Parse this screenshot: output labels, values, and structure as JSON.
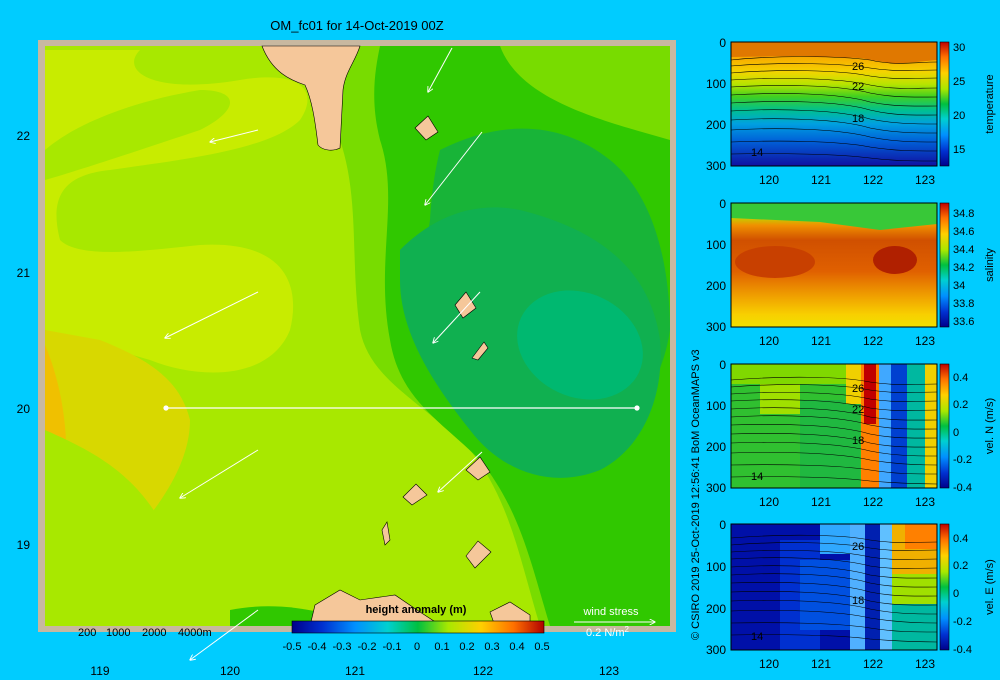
{
  "colors": {
    "background": "#00ccff",
    "land": "#f5c79a",
    "map_frame": "#c8b8a0",
    "arrow": "#ffffff",
    "section_line": "#ffffff"
  },
  "map": {
    "title": "OM_fc01 for 14-Oct-2019 00Z",
    "depth_contour_labels": [
      "200",
      "1000",
      "2000",
      "4000m"
    ],
    "colorbar_label": "height anomaly (m)",
    "colorbar_ticks": [
      "-0.5",
      "-0.4",
      "-0.3",
      "-0.2",
      "-0.1",
      "0",
      "0.1",
      "0.2",
      "0.3",
      "0.4",
      "0.5"
    ],
    "wind_stress_label": "wind stress",
    "wind_stress_scale": "0.2 N/m",
    "wind_stress_superscript": "2",
    "section_line": {
      "lon": [
        119.5,
        123.2
      ],
      "lat": [
        20,
        20
      ]
    }
  },
  "credit": {
    "text": "© CSIRO 2019  25-Oct-2019 12:56:41 BoM OceanMAPS v3"
  },
  "chart_data": [
    {
      "type": "heatmap",
      "title": "OM_fc01 for 14-Oct-2019 00Z",
      "variable": "height anomaly (m)",
      "xlim": [
        118.5,
        123.5
      ],
      "ylim": [
        18.3,
        22.7
      ],
      "x_ticks": [
        "119",
        "120",
        "121",
        "122",
        "123"
      ],
      "y_ticks": [
        "19",
        "20",
        "21",
        "22"
      ],
      "color_range": [
        -0.5,
        0.5
      ],
      "grid": false,
      "wind_stress_vectors": [
        {
          "lon": 120.2,
          "lat": 22.05,
          "u": -0.3,
          "v": -0.05
        },
        {
          "lon": 121.75,
          "lat": 22.65,
          "u": -0.12,
          "v": -0.3
        },
        {
          "lon": 121.95,
          "lat": 22.0,
          "u": -0.4,
          "v": -0.55
        },
        {
          "lon": 120.2,
          "lat": 20.85,
          "u": -0.7,
          "v": -0.35
        },
        {
          "lon": 121.85,
          "lat": 20.85,
          "u": -0.4,
          "v": -0.45
        },
        {
          "lon": 120.15,
          "lat": 19.75,
          "u": -0.6,
          "v": -0.4
        },
        {
          "lon": 121.95,
          "lat": 19.75,
          "u": -0.35,
          "v": -0.3
        },
        {
          "lon": 120.2,
          "lat": 18.5,
          "u": -0.5,
          "v": -0.3
        }
      ]
    },
    {
      "type": "heatmap",
      "variable": "temperature",
      "x_ticks": [
        "120",
        "121",
        "122",
        "123"
      ],
      "y_ticks": [
        "0",
        "100",
        "200",
        "300"
      ],
      "xlim": [
        119.5,
        123.2
      ],
      "ylim": [
        300,
        0
      ],
      "colorbar_ticks": [
        "15",
        "20",
        "25",
        "30"
      ],
      "color_range": [
        13,
        31
      ],
      "contour_labels": [
        "26",
        "22",
        "18",
        "14"
      ]
    },
    {
      "type": "heatmap",
      "variable": "salinity",
      "x_ticks": [
        "120",
        "121",
        "122",
        "123"
      ],
      "y_ticks": [
        "0",
        "100",
        "200",
        "300"
      ],
      "xlim": [
        119.5,
        123.2
      ],
      "ylim": [
        300,
        0
      ],
      "colorbar_ticks": [
        "34.8",
        "34.6",
        "34.4",
        "34.2",
        "34",
        "33.8",
        "33.6"
      ],
      "color_range": [
        33.55,
        34.9
      ]
    },
    {
      "type": "heatmap",
      "variable": "vel. N (m/s)",
      "x_ticks": [
        "120",
        "121",
        "122",
        "123"
      ],
      "y_ticks": [
        "0",
        "100",
        "200",
        "300"
      ],
      "xlim": [
        119.5,
        123.2
      ],
      "ylim": [
        300,
        0
      ],
      "colorbar_ticks": [
        "0.4",
        "0.2",
        "0",
        "-0.2",
        "-0.4"
      ],
      "color_range": [
        -0.45,
        0.45
      ],
      "contour_labels": [
        "26",
        "22",
        "18",
        "14"
      ]
    },
    {
      "type": "heatmap",
      "variable": "vel. E (m/s)",
      "x_ticks": [
        "120",
        "121",
        "122",
        "123"
      ],
      "y_ticks": [
        "0",
        "100",
        "200",
        "300"
      ],
      "xlim": [
        119.5,
        123.2
      ],
      "ylim": [
        300,
        0
      ],
      "colorbar_ticks": [
        "0.4",
        "0.2",
        "0",
        "-0.2",
        "-0.4"
      ],
      "color_range": [
        -0.45,
        0.45
      ],
      "contour_labels": [
        "26",
        "18",
        "14"
      ]
    }
  ]
}
